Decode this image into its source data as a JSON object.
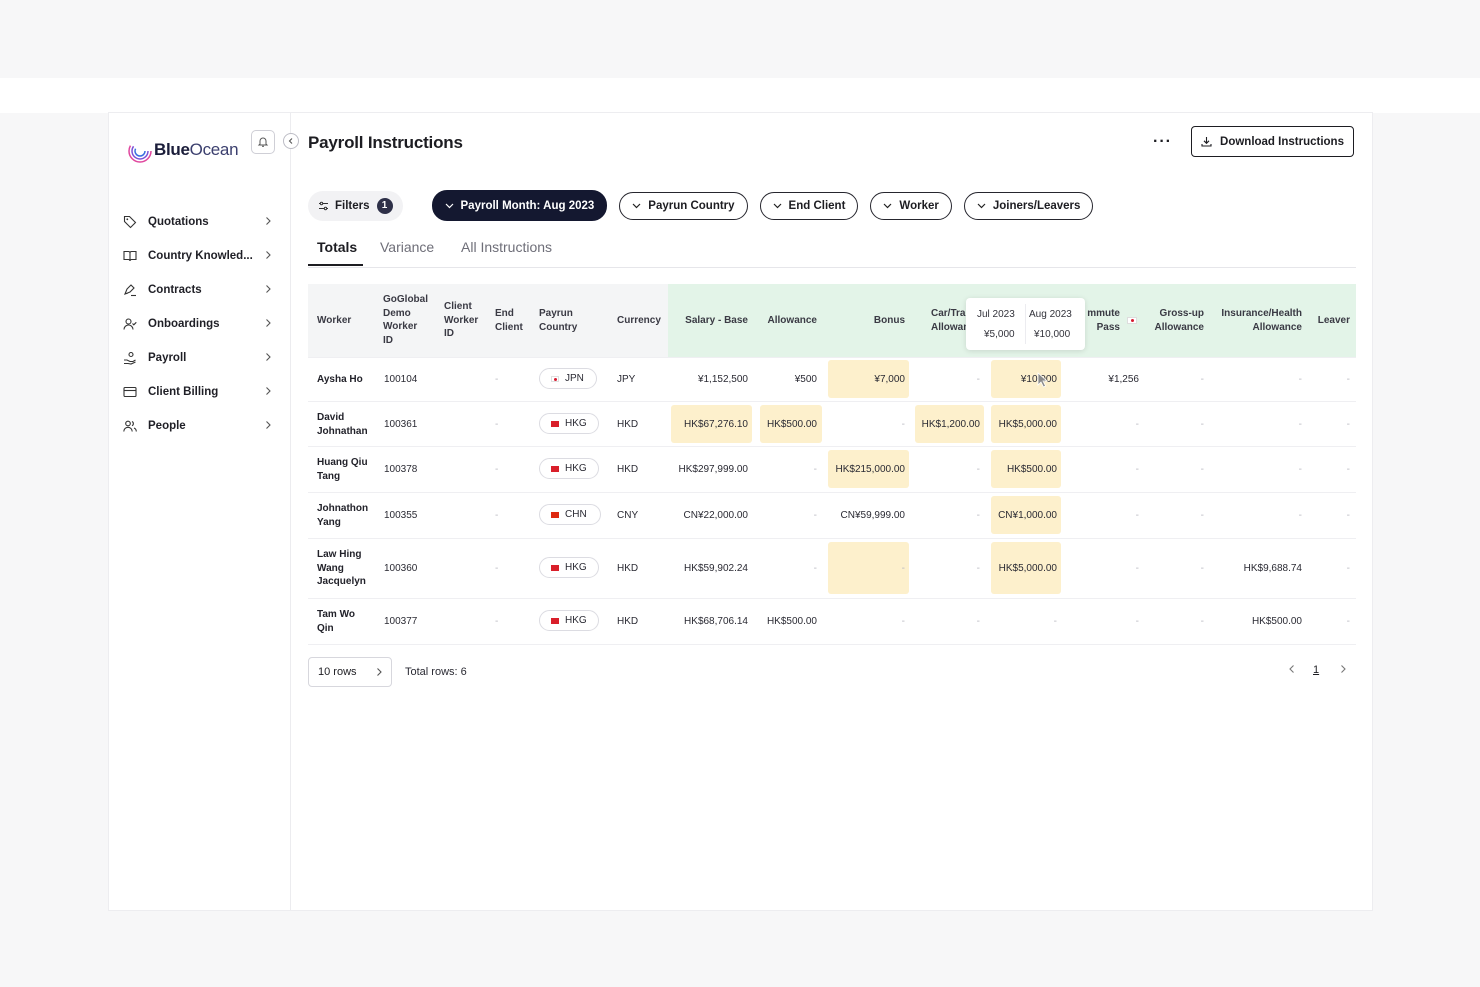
{
  "app": {
    "logo_bold": "Blue",
    "logo_light": "Ocean"
  },
  "sidebar": {
    "items": [
      {
        "label": "Quotations",
        "icon": "tag-icon"
      },
      {
        "label": "Country Knowled...",
        "icon": "book-icon"
      },
      {
        "label": "Contracts",
        "icon": "signature-icon"
      },
      {
        "label": "Onboardings",
        "icon": "user-check-icon"
      },
      {
        "label": "Payroll",
        "icon": "payroll-icon"
      },
      {
        "label": "Client Billing",
        "icon": "credit-card-icon"
      },
      {
        "label": "People",
        "icon": "people-icon"
      }
    ]
  },
  "header": {
    "title": "Payroll Instructions",
    "more": "···",
    "download_label": "Download Instructions"
  },
  "filters": {
    "label": "Filters",
    "count": "1",
    "chips": [
      "Payroll Month: Aug 2023",
      "Payrun Country",
      "End Client",
      "Worker",
      "Joiners/Leavers"
    ]
  },
  "tabs": [
    "Totals",
    "Variance",
    "All Instructions"
  ],
  "table": {
    "headers": {
      "worker": "Worker",
      "demo_id": [
        "GoGlobal",
        "Demo",
        "Worker",
        "ID"
      ],
      "client_id": [
        "Client",
        "Worker",
        "ID"
      ],
      "end_client": [
        "End",
        "Client"
      ],
      "payrun_country": [
        "Payrun",
        "Country"
      ],
      "currency": "Currency",
      "salary_base": "Salary - Base",
      "allowance": "Allowance",
      "bonus": "Bonus",
      "car": [
        "Car/Tra",
        "Allowan"
      ],
      "commute": [
        "mmute",
        "Pass"
      ],
      "grossup": [
        "Gross-up",
        "Allowance"
      ],
      "insurance": [
        "Insurance/Health",
        "Allowance"
      ],
      "leaver": "Leaver"
    },
    "rows": [
      {
        "worker": [
          "Aysha Ho"
        ],
        "id": "100104",
        "end_client": "-",
        "country": "JPN",
        "currency": "JPY",
        "salary": "¥1,152,500",
        "allowance": "¥500",
        "bonus": "¥7,000",
        "car": "-",
        "col10": "¥10,000",
        "commute": "¥1,256",
        "grossup": "-",
        "insurance": "-",
        "leaver": "-"
      },
      {
        "worker": [
          "David",
          "Johnathan"
        ],
        "id": "100361",
        "end_client": "-",
        "country": "HKG",
        "currency": "HKD",
        "salary": "HK$67,276.10",
        "allowance": "HK$500.00",
        "bonus": "-",
        "car": "HK$1,200.00",
        "col10": "HK$5,000.00",
        "commute": "-",
        "grossup": "-",
        "insurance": "-",
        "leaver": "-"
      },
      {
        "worker": [
          "Huang Qiu",
          "Tang"
        ],
        "id": "100378",
        "end_client": "-",
        "country": "HKG",
        "currency": "HKD",
        "salary": "HK$297,999.00",
        "allowance": "-",
        "bonus": "HK$215,000.00",
        "car": "-",
        "col10": "HK$500.00",
        "commute": "-",
        "grossup": "-",
        "insurance": "-",
        "leaver": "-"
      },
      {
        "worker": [
          "Johnathon",
          "Yang"
        ],
        "id": "100355",
        "end_client": "-",
        "country": "CHN",
        "currency": "CNY",
        "salary": "CN¥22,000.00",
        "allowance": "-",
        "bonus": "CN¥59,999.00",
        "car": "-",
        "col10": "CN¥1,000.00",
        "commute": "-",
        "grossup": "-",
        "insurance": "-",
        "leaver": "-"
      },
      {
        "worker": [
          "Law Hing",
          "Wang",
          "Jacquelyn"
        ],
        "id": "100360",
        "end_client": "-",
        "country": "HKG",
        "currency": "HKD",
        "salary": "HK$59,902.24",
        "allowance": "-",
        "bonus": "-",
        "car": "-",
        "col10": "HK$5,000.00",
        "commute": "-",
        "grossup": "-",
        "insurance": "HK$9,688.74",
        "leaver": "-"
      },
      {
        "worker": [
          "Tam Wo",
          "Qin"
        ],
        "id": "100377",
        "end_client": "-",
        "country": "HKG",
        "currency": "HKD",
        "salary": "HK$68,706.14",
        "allowance": "HK$500.00",
        "bonus": "-",
        "car": "-",
        "col10": "-",
        "commute": "-",
        "grossup": "-",
        "insurance": "HK$500.00",
        "leaver": "-"
      }
    ]
  },
  "tooltip": {
    "prev_label": "Jul 2023",
    "curr_label": "Aug 2023",
    "prev_value": "¥5,000",
    "curr_value": "¥10,000"
  },
  "footer": {
    "rows_select": "10 rows",
    "total_rows": "Total rows: 6",
    "page": "1"
  },
  "colors": {
    "accent_dark": "#141830",
    "highlight": "#fdf0cc",
    "header_green": "#e3f4e8"
  }
}
